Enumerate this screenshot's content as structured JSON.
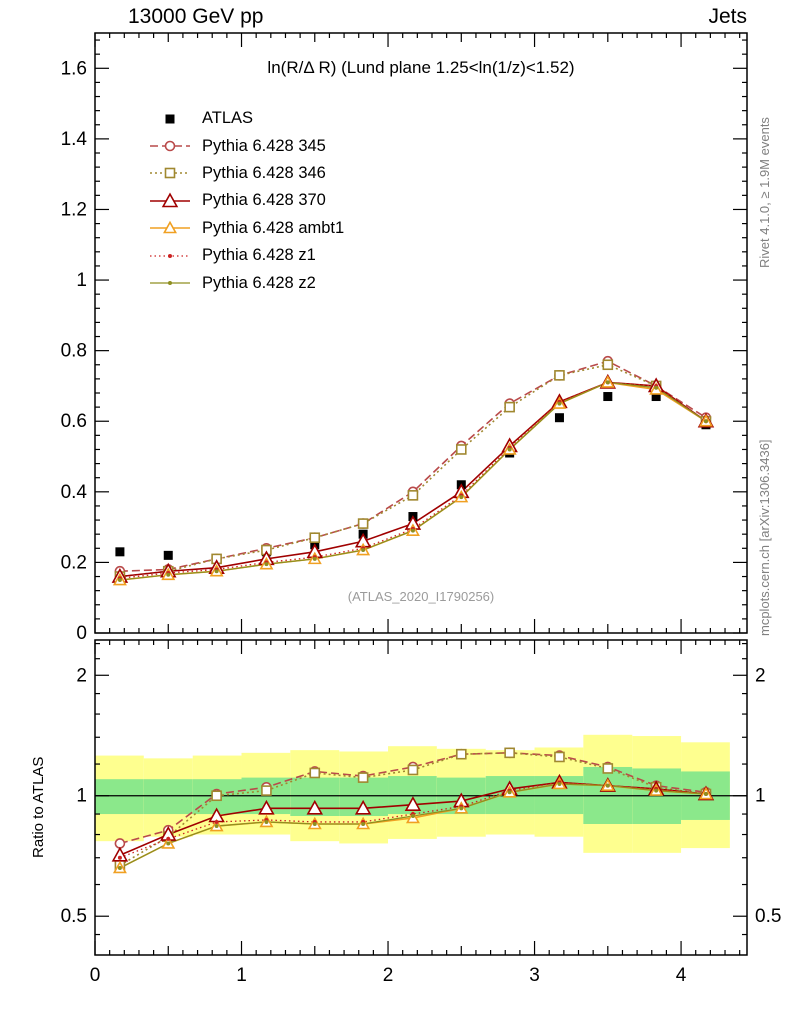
{
  "header": {
    "left": "13000 GeV pp",
    "right": "Jets"
  },
  "side_texts": {
    "top_right": "Rivet 4.1.0, ≥ 1.9M events",
    "bottom_right": "mcplots.cern.ch [arXiv:1306.3436]"
  },
  "watermark": "(ATLAS_2020_I1790256)",
  "ratio_label": "Ratio to ATLAS",
  "chart_data": {
    "type": "line",
    "title": "ln(R/Δ R) (Lund plane 1.25<ln(1/z)<1.52)",
    "xlabel": "",
    "ylabel": "",
    "xlim": [
      0,
      4.45
    ],
    "main_ylim": [
      0,
      1.7
    ],
    "ratio_ylim": [
      0.4,
      2.45
    ],
    "ratio_scale": "log",
    "xticks": [
      0,
      1,
      2,
      3,
      4
    ],
    "main_yticks": [
      0,
      0.2,
      0.4,
      0.6,
      0.8,
      1,
      1.2,
      1.4,
      1.6
    ],
    "ratio_yticks": [
      0.5,
      1,
      2
    ],
    "ratio_ytick_labels": [
      "0.5",
      "1",
      "2"
    ],
    "x": [
      0.17,
      0.5,
      0.83,
      1.17,
      1.5,
      1.83,
      2.17,
      2.5,
      2.83,
      3.17,
      3.5,
      3.83,
      4.17
    ],
    "series": [
      {
        "id": "atlas",
        "label": "ATLAS",
        "color": "#000000",
        "line": "none",
        "dash": "",
        "marker": "square-filled",
        "msize": 9,
        "width": 1.6,
        "values": [
          0.23,
          0.22,
          0.21,
          0.23,
          0.25,
          0.28,
          0.33,
          0.42,
          0.51,
          0.61,
          0.67,
          0.67,
          0.59
        ],
        "ratio": null
      },
      {
        "id": "pythia-345",
        "label": "Pythia 6.428 345",
        "color": "#b94a4a",
        "line": "dashed",
        "dash": "8,4",
        "marker": "circle-open",
        "msize": 9,
        "width": 1.6,
        "values": [
          0.175,
          0.18,
          0.21,
          0.24,
          0.27,
          0.31,
          0.4,
          0.53,
          0.65,
          0.73,
          0.77,
          0.7,
          0.61
        ],
        "ratio": [
          0.76,
          0.82,
          1.01,
          1.05,
          1.15,
          1.12,
          1.18,
          1.27,
          1.28,
          1.26,
          1.18,
          1.06,
          1.02
        ]
      },
      {
        "id": "pythia-346",
        "label": "Pythia 6.428 346",
        "color": "#a08830",
        "line": "dotted",
        "dash": "2,3",
        "marker": "square-open",
        "msize": 9,
        "width": 1.6,
        "values": [
          0.16,
          0.175,
          0.21,
          0.235,
          0.27,
          0.31,
          0.39,
          0.52,
          0.64,
          0.73,
          0.76,
          0.7,
          0.6
        ],
        "ratio": [
          0.67,
          0.79,
          1.0,
          1.03,
          1.14,
          1.11,
          1.16,
          1.27,
          1.28,
          1.25,
          1.17,
          1.05,
          1.01
        ]
      },
      {
        "id": "pythia-370",
        "label": "Pythia 6.428 370",
        "color": "#a00000",
        "line": "solid",
        "dash": "",
        "marker": "triangle-open",
        "msize": 11,
        "width": 1.6,
        "values": [
          0.16,
          0.175,
          0.185,
          0.21,
          0.23,
          0.26,
          0.31,
          0.4,
          0.53,
          0.655,
          0.71,
          0.7,
          0.6
        ],
        "ratio": [
          0.71,
          0.8,
          0.89,
          0.93,
          0.93,
          0.93,
          0.95,
          0.97,
          1.04,
          1.08,
          1.06,
          1.04,
          1.01
        ]
      },
      {
        "id": "pythia-ambt1",
        "label": "Pythia 6.428 ambt1",
        "color": "#f0a022",
        "line": "solid",
        "dash": "",
        "marker": "triangle-open",
        "msize": 9,
        "width": 1.6,
        "values": [
          0.15,
          0.165,
          0.175,
          0.195,
          0.21,
          0.235,
          0.29,
          0.385,
          0.52,
          0.65,
          0.71,
          0.69,
          0.6
        ],
        "ratio": [
          0.66,
          0.76,
          0.84,
          0.86,
          0.85,
          0.85,
          0.88,
          0.93,
          1.02,
          1.07,
          1.06,
          1.03,
          1.01
        ]
      },
      {
        "id": "pythia-z1",
        "label": "Pythia 6.428 z1",
        "color": "#cc2222",
        "line": "dotted",
        "dash": "1.5,3",
        "marker": "dot",
        "msize": 4,
        "width": 1.3,
        "values": [
          0.155,
          0.17,
          0.18,
          0.2,
          0.215,
          0.24,
          0.295,
          0.39,
          0.525,
          0.655,
          0.71,
          0.7,
          0.6
        ],
        "ratio": [
          0.7,
          0.78,
          0.86,
          0.87,
          0.86,
          0.86,
          0.9,
          0.94,
          1.03,
          1.08,
          1.06,
          1.04,
          1.01
        ]
      },
      {
        "id": "pythia-z2",
        "label": "Pythia 6.428 z2",
        "color": "#8f8f20",
        "line": "solid",
        "dash": "",
        "marker": "dot",
        "msize": 4,
        "width": 1.3,
        "values": [
          0.15,
          0.165,
          0.175,
          0.195,
          0.21,
          0.235,
          0.29,
          0.385,
          0.52,
          0.65,
          0.71,
          0.695,
          0.6
        ],
        "ratio": [
          0.66,
          0.76,
          0.84,
          0.86,
          0.85,
          0.85,
          0.89,
          0.93,
          1.02,
          1.07,
          1.06,
          1.03,
          1.01
        ]
      }
    ],
    "ratio_bands": {
      "bin_edges": [
        0,
        0.333,
        0.667,
        1.0,
        1.333,
        1.667,
        2.0,
        2.333,
        2.667,
        3.0,
        3.333,
        3.667,
        4.0,
        4.333
      ],
      "yellow": {
        "color": "#feff8f",
        "lo": [
          0.77,
          0.79,
          0.8,
          0.8,
          0.77,
          0.76,
          0.78,
          0.79,
          0.8,
          0.79,
          0.72,
          0.72,
          0.74
        ],
        "hi": [
          1.26,
          1.24,
          1.26,
          1.28,
          1.3,
          1.29,
          1.33,
          1.31,
          1.3,
          1.32,
          1.42,
          1.41,
          1.36
        ]
      },
      "green": {
        "color": "#8be88b",
        "lo": [
          0.9,
          0.9,
          0.9,
          0.9,
          0.89,
          0.89,
          0.9,
          0.9,
          0.9,
          0.9,
          0.85,
          0.85,
          0.87
        ],
        "hi": [
          1.1,
          1.1,
          1.1,
          1.11,
          1.11,
          1.11,
          1.12,
          1.11,
          1.12,
          1.12,
          1.18,
          1.17,
          1.15
        ]
      }
    },
    "legend_position": "top-left",
    "grid": false
  }
}
